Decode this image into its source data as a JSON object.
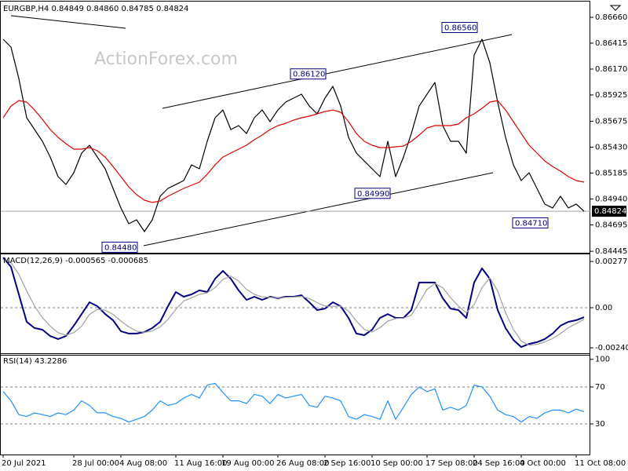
{
  "chart_data": [
    {
      "type": "line",
      "title": "EURGBP,H4  0.84849 0.84860 0.84785 0.84824",
      "watermark": "ActionForex.com",
      "ylim": [
        0.84431,
        0.86794
      ],
      "yticks": [
        {
          "value": 0.8666,
          "label": "0.86660"
        },
        {
          "value": 0.86415,
          "label": "0.86415"
        },
        {
          "value": 0.8617,
          "label": "0.86170"
        },
        {
          "value": 0.85925,
          "label": "0.85925"
        },
        {
          "value": 0.85675,
          "label": "0.85675"
        },
        {
          "value": 0.8543,
          "label": "0.85430"
        },
        {
          "value": 0.85185,
          "label": "0.85185"
        },
        {
          "value": 0.8494,
          "label": "0.84940"
        },
        {
          "value": 0.84695,
          "label": "0.84695"
        },
        {
          "value": 0.84445,
          "label": "0.84445"
        }
      ],
      "last_price": {
        "value": 0.84824,
        "label": "0.84824"
      },
      "annotations": [
        {
          "value": 0.8448,
          "label": "0.84480"
        },
        {
          "value": 0.8612,
          "label": "0.86120"
        },
        {
          "value": 0.8656,
          "label": "0.86560"
        },
        {
          "value": 0.8499,
          "label": "0.84990"
        },
        {
          "value": 0.8471,
          "label": "0.84710"
        }
      ],
      "series": [
        {
          "color": "#000000",
          "values": [
            0.86452,
            0.86378,
            0.8608,
            0.85709,
            0.85598,
            0.85486,
            0.85337,
            0.85152,
            0.85077,
            0.85189,
            0.85375,
            0.85449,
            0.85337,
            0.85226,
            0.8504,
            0.84855,
            0.84706,
            0.84743,
            0.84632,
            0.84743,
            0.84966,
            0.8504,
            0.85077,
            0.85115,
            0.85263,
            0.85226,
            0.85486,
            0.85709,
            0.85783,
            0.85598,
            0.85635,
            0.8556,
            0.85709,
            0.85783,
            0.85672,
            0.85783,
            0.85858,
            0.85895,
            0.85932,
            0.8582,
            0.85746,
            0.85895,
            0.86006,
            0.8582,
            0.85523,
            0.85375,
            0.853,
            0.85226,
            0.85152,
            0.85486,
            0.85152,
            0.85337,
            0.8556,
            0.8582,
            0.85932,
            0.86043,
            0.85635,
            0.85486,
            0.85486,
            0.85375,
            0.86303,
            0.86452,
            0.86229,
            0.85858,
            0.85523,
            0.85263,
            0.85115,
            0.85189,
            0.8504,
            0.84892,
            0.84855,
            0.84966,
            0.84855,
            0.84892,
            0.84824
          ]
        },
        {
          "color": "#e00000",
          "values": [
            0.85709,
            0.8582,
            0.85872,
            0.85858,
            0.85783,
            0.85694,
            0.85598,
            0.85523,
            0.85464,
            0.85412,
            0.85412,
            0.85427,
            0.85397,
            0.85337,
            0.85248,
            0.85152,
            0.85055,
            0.84981,
            0.84929,
            0.84907,
            0.84921,
            0.84966,
            0.85003,
            0.8504,
            0.8507,
            0.851,
            0.85174,
            0.85263,
            0.85337,
            0.85375,
            0.85412,
            0.85449,
            0.85501,
            0.85545,
            0.85598,
            0.85635,
            0.85657,
            0.85687,
            0.85709,
            0.85724,
            0.85746,
            0.85768,
            0.85783,
            0.85761,
            0.85672,
            0.8556,
            0.85486,
            0.85449,
            0.85427,
            0.85427,
            0.85434,
            0.85441,
            0.85486,
            0.85545,
            0.85612,
            0.85635,
            0.85635,
            0.85635,
            0.8565,
            0.85709,
            0.85746,
            0.85798,
            0.85858,
            0.85872,
            0.85783,
            0.85672,
            0.8556,
            0.85449,
            0.85375,
            0.853,
            0.85248,
            0.85204,
            0.85152,
            0.85115,
            0.851
          ]
        }
      ]
    },
    {
      "type": "line",
      "title": "MACD(12,26,9) -0.000565 -0.000685",
      "ylim": [
        -0.002779,
        0.003156
      ],
      "yticks": [
        0.002775,
        {
          "value": 0,
          "label": "0.00"
        },
        -0.002407
      ],
      "levels": [
        0
      ],
      "series": [
        {
          "color": "#000080",
          "values": [
            0.00301,
            0.00245,
            0.0008,
            -0.00085,
            -0.00122,
            -0.00132,
            -0.0017,
            -0.00188,
            -0.0017,
            -0.00108,
            -0.00038,
            0.00033,
            9e-05,
            -0.00038,
            -0.00075,
            -0.00141,
            -0.00155,
            -0.00155,
            -0.00146,
            -0.00122,
            -0.00085,
            9e-05,
            0.00094,
            0.00066,
            0.0008,
            0.00104,
            0.00094,
            0.00174,
            0.00221,
            0.00174,
            0.00104,
            0.00047,
            0.00066,
            0.00047,
            0.00066,
            0.00057,
            0.00066,
            0.00066,
            0.00075,
            0.00033,
            -0.00014,
            -5e-05,
            0.00033,
            9e-05,
            -0.00061,
            -0.00155,
            -0.00165,
            -0.00132,
            -0.00061,
            -0.00038,
            -0.00061,
            -0.00061,
            -0.00014,
            0.00151,
            0.00151,
            0.00151,
            0.00057,
            -5e-05,
            -0.00014,
            -0.00061,
            0.00151,
            0.00236,
            0.00174,
            -0.00014,
            -0.00122,
            -0.00193,
            -0.00236,
            -0.00217,
            -0.00207,
            -0.00188,
            -0.00155,
            -0.00108,
            -0.00085,
            -0.00075,
            -0.00057
          ]
        },
        {
          "color": "#a0a0a0",
          "values": [
            0.0029,
            0.0027,
            0.002,
            0.001,
            0.0001,
            -0.0006,
            -0.0011,
            -0.0015,
            -0.00165,
            -0.0015,
            -0.0011,
            -0.0004,
            -0.0001,
            -0.00015,
            -0.0004,
            -0.0008,
            -0.00115,
            -0.0014,
            -0.00148,
            -0.0014,
            -0.00115,
            -0.0007,
            -0.0001,
            0.0004,
            0.0006,
            0.0008,
            0.0009,
            0.0012,
            0.0017,
            0.0019,
            0.0016,
            0.0011,
            0.0008,
            0.00065,
            0.00062,
            0.0006,
            0.00062,
            0.00064,
            0.00068,
            0.00055,
            0.0003,
            0.0001,
            8e-05,
            0.0001,
            -0.0002,
            -0.0008,
            -0.0013,
            -0.00145,
            -0.0012,
            -0.0008,
            -0.00065,
            -0.00062,
            -0.00045,
            0.0003,
            0.0011,
            0.00145,
            0.0012,
            0.0006,
            0.0001,
            -0.0003,
            0.0002,
            0.0012,
            0.0018,
            0.001,
            -0.0003,
            -0.0013,
            -0.002,
            -0.00225,
            -0.0022,
            -0.00205,
            -0.00185,
            -0.00155,
            -0.0012,
            -0.00095,
            -0.00069
          ]
        }
      ]
    },
    {
      "type": "line",
      "title": "RSI(14) 43.2286",
      "ylim": [
        -2.34,
        104.04
      ],
      "yticks": [
        100,
        70,
        30
      ],
      "levels": [
        70,
        30
      ],
      "categories": [
        "20 Jul 2021",
        null,
        null,
        null,
        null,
        null,
        null,
        null,
        null,
        "28 Jul 00:00",
        null,
        null,
        null,
        null,
        null,
        "4 Aug 08:00",
        null,
        null,
        null,
        null,
        null,
        null,
        "11 Aug 16:00",
        null,
        null,
        null,
        null,
        null,
        "19 Aug 00:00",
        null,
        null,
        null,
        null,
        null,
        null,
        "26 Aug 08:00",
        null,
        null,
        null,
        null,
        null,
        "2 Sep 16:00",
        null,
        null,
        null,
        null,
        null,
        "10 Sep 00:00",
        null,
        null,
        null,
        null,
        null,
        null,
        "17 Sep 08:00",
        null,
        null,
        null,
        null,
        null,
        "24 Sep 16:00",
        null,
        null,
        null,
        null,
        null,
        "4 Oct 00:00",
        null,
        null,
        null,
        null,
        null,
        null,
        "11 Oct 08:00",
        null
      ],
      "series": [
        {
          "color": "#1e90ff",
          "values": [
            65,
            55,
            40,
            38,
            42,
            40,
            38,
            42,
            40,
            45,
            55,
            50,
            42,
            42,
            38,
            36,
            32,
            35,
            38,
            45,
            55,
            50,
            52,
            58,
            62,
            58,
            72,
            74,
            64,
            55,
            55,
            52,
            62,
            60,
            52,
            62,
            58,
            60,
            62,
            50,
            48,
            60,
            58,
            55,
            38,
            35,
            40,
            38,
            35,
            55,
            35,
            48,
            62,
            70,
            65,
            68,
            45,
            48,
            45,
            50,
            72,
            70,
            60,
            45,
            40,
            38,
            32,
            38,
            36,
            42,
            45,
            45,
            42,
            46,
            43.2286
          ]
        }
      ]
    }
  ]
}
